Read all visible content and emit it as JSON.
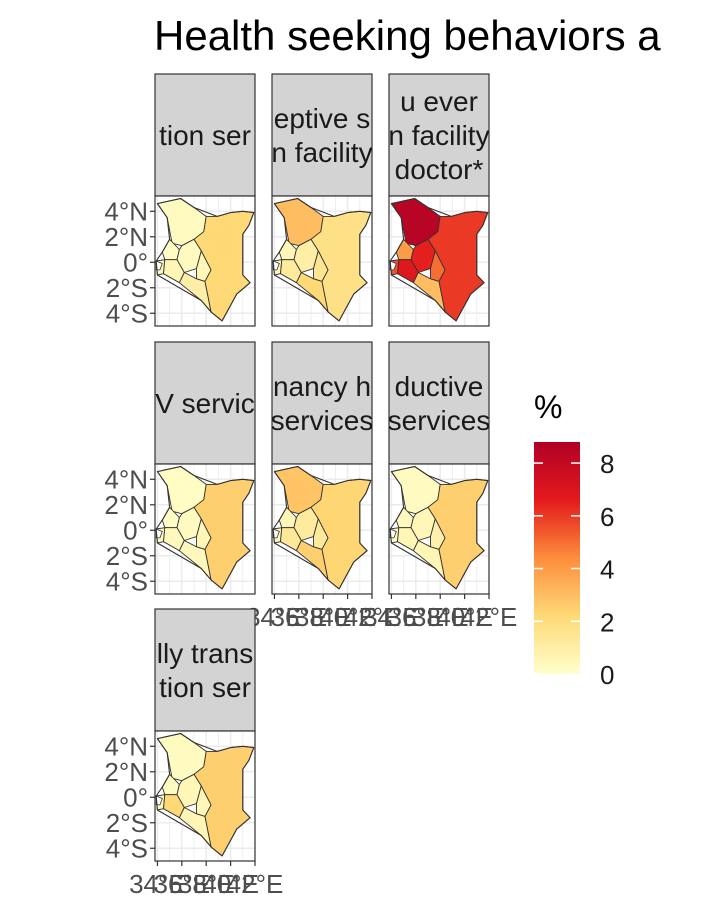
{
  "chart_data": {
    "type": "choropleth",
    "title": "Health seeking behaviors a",
    "facets": [
      {
        "label_lines": [
          "tion ser"
        ],
        "region_values": [
          0.3,
          0.2,
          0.4,
          0.3,
          0.6,
          0.5,
          1.0,
          2.2
        ]
      },
      {
        "label_lines": [
          "eptive s",
          "n facility"
        ],
        "region_values": [
          3.0,
          0.5,
          0.6,
          1.0,
          1.2,
          1.5,
          2.2,
          1.8
        ]
      },
      {
        "label_lines": [
          "u ever",
          "n facility",
          "doctor*"
        ],
        "region_values": [
          8.5,
          4.0,
          5.5,
          6.5,
          6.8,
          5.0,
          3.0,
          6.0
        ]
      },
      {
        "label_lines": [
          "V servic"
        ],
        "region_values": [
          0.2,
          0.2,
          0.3,
          0.3,
          0.4,
          0.5,
          0.4,
          2.5
        ]
      },
      {
        "label_lines": [
          "nancy h",
          "services"
        ],
        "region_values": [
          2.8,
          0.5,
          0.5,
          1.2,
          1.3,
          1.2,
          2.5,
          2.3
        ]
      },
      {
        "label_lines": [
          "ductive",
          "services"
        ],
        "region_values": [
          0.3,
          0.4,
          0.2,
          0.5,
          0.6,
          0.8,
          0.6,
          2.5
        ]
      },
      {
        "label_lines": [
          "lly trans",
          "tion ser"
        ],
        "region_values": [
          0.3,
          0.3,
          0.4,
          0.5,
          2.2,
          0.5,
          0.6,
          2.5
        ]
      }
    ],
    "y_tick_labels": [
      "4°N",
      "2°N",
      "0°",
      "2°S",
      "4°S"
    ],
    "x_tick_labels": [
      "34°E",
      "36°E",
      "38°E",
      "40°E",
      "42°E"
    ],
    "legend": {
      "title": "%",
      "range": [
        0,
        8.8
      ],
      "ticks": [
        0,
        2,
        4,
        6,
        8
      ],
      "colors": [
        "#ffffcc",
        "#fed976",
        "#fd8d3c",
        "#e31a1c",
        "#b10026"
      ]
    }
  }
}
